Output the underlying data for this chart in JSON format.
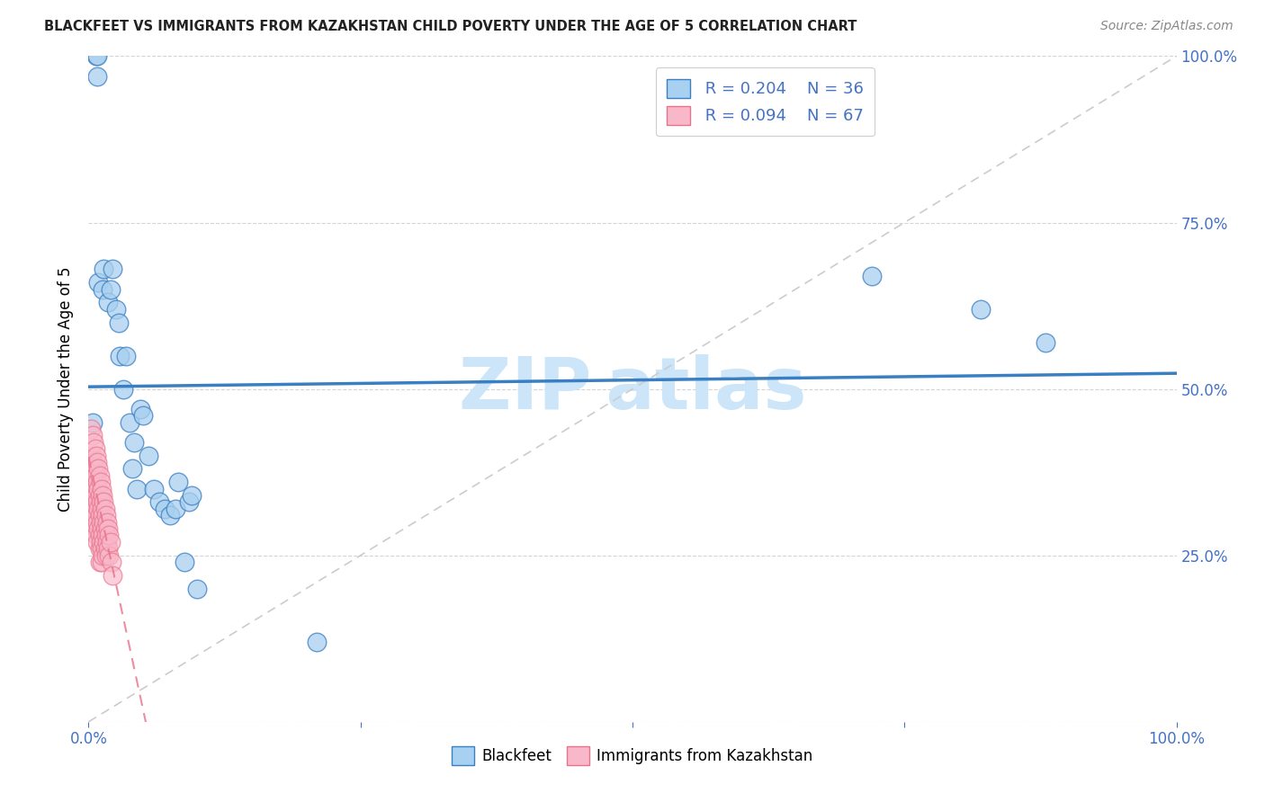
{
  "title": "BLACKFEET VS IMMIGRANTS FROM KAZAKHSTAN CHILD POVERTY UNDER THE AGE OF 5 CORRELATION CHART",
  "source": "Source: ZipAtlas.com",
  "ylabel": "Child Poverty Under the Age of 5",
  "legend_label1": "Blackfeet",
  "legend_label2": "Immigrants from Kazakhstan",
  "R1": "0.204",
  "N1": "36",
  "R2": "0.094",
  "N2": "67",
  "color1": "#a8d0f0",
  "color2": "#f9b8ca",
  "line1_color": "#3a7fc1",
  "line2_color": "#e8728a",
  "blue_points_x": [
    0.004,
    0.007,
    0.008,
    0.008,
    0.009,
    0.013,
    0.014,
    0.018,
    0.02,
    0.022,
    0.025,
    0.028,
    0.029,
    0.032,
    0.034,
    0.038,
    0.04,
    0.042,
    0.044,
    0.048,
    0.05,
    0.055,
    0.06,
    0.065,
    0.07,
    0.075,
    0.08,
    0.082,
    0.088,
    0.092,
    0.095,
    0.1,
    0.21,
    0.72,
    0.82,
    0.88
  ],
  "blue_points_y": [
    0.45,
    1.0,
    0.97,
    1.0,
    0.66,
    0.65,
    0.68,
    0.63,
    0.65,
    0.68,
    0.62,
    0.6,
    0.55,
    0.5,
    0.55,
    0.45,
    0.38,
    0.42,
    0.35,
    0.47,
    0.46,
    0.4,
    0.35,
    0.33,
    0.32,
    0.31,
    0.32,
    0.36,
    0.24,
    0.33,
    0.34,
    0.2,
    0.12,
    0.67,
    0.62,
    0.57
  ],
  "pink_points_x": [
    0.002,
    0.003,
    0.003,
    0.003,
    0.004,
    0.004,
    0.004,
    0.005,
    0.005,
    0.005,
    0.005,
    0.006,
    0.006,
    0.006,
    0.006,
    0.006,
    0.007,
    0.007,
    0.007,
    0.007,
    0.007,
    0.008,
    0.008,
    0.008,
    0.008,
    0.008,
    0.009,
    0.009,
    0.009,
    0.009,
    0.01,
    0.01,
    0.01,
    0.01,
    0.01,
    0.01,
    0.011,
    0.011,
    0.011,
    0.011,
    0.012,
    0.012,
    0.012,
    0.012,
    0.012,
    0.013,
    0.013,
    0.013,
    0.013,
    0.014,
    0.014,
    0.014,
    0.015,
    0.015,
    0.015,
    0.016,
    0.016,
    0.016,
    0.017,
    0.017,
    0.018,
    0.018,
    0.019,
    0.019,
    0.02,
    0.021,
    0.022
  ],
  "pink_points_y": [
    0.44,
    0.4,
    0.37,
    0.34,
    0.43,
    0.39,
    0.36,
    0.42,
    0.38,
    0.35,
    0.32,
    0.41,
    0.38,
    0.35,
    0.32,
    0.29,
    0.4,
    0.37,
    0.34,
    0.31,
    0.28,
    0.39,
    0.36,
    0.33,
    0.3,
    0.27,
    0.38,
    0.35,
    0.32,
    0.29,
    0.37,
    0.34,
    0.31,
    0.28,
    0.26,
    0.24,
    0.36,
    0.33,
    0.3,
    0.27,
    0.35,
    0.32,
    0.29,
    0.26,
    0.24,
    0.34,
    0.31,
    0.28,
    0.25,
    0.33,
    0.3,
    0.27,
    0.32,
    0.29,
    0.26,
    0.31,
    0.28,
    0.25,
    0.3,
    0.27,
    0.29,
    0.26,
    0.28,
    0.25,
    0.27,
    0.24,
    0.22
  ],
  "background_color": "#ffffff",
  "grid_color": "#d0d0d0",
  "axis_color": "#4472c4",
  "watermark_color": "#cce5f8",
  "identity_line_color": "#cccccc"
}
